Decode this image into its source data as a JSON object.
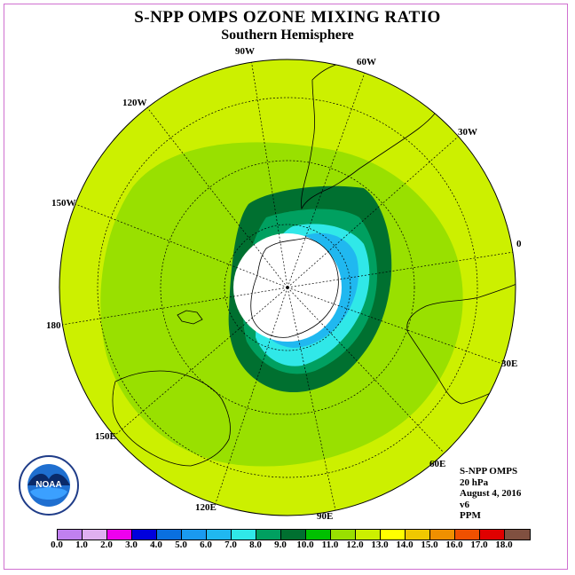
{
  "title": "S-NPP OMPS OZONE MIXING RATIO",
  "subtitle": "Southern Hemisphere",
  "longitude_labels": [
    "90W",
    "60W",
    "30W",
    "0",
    "30E",
    "60E",
    "90E",
    "120E",
    "150E",
    "180",
    "150W",
    "120W"
  ],
  "info": {
    "instrument": "S-NPP OMPS",
    "pressure": "20 hPa",
    "date": "August 4, 2016",
    "version": "v6",
    "units": "PPM"
  },
  "logo_text": "NOAA",
  "colorbar": {
    "ticks": [
      "0.0",
      "1.0",
      "2.0",
      "3.0",
      "4.0",
      "5.0",
      "6.0",
      "7.0",
      "8.0",
      "9.0",
      "10.0",
      "11.0",
      "12.0",
      "13.0",
      "14.0",
      "15.0",
      "16.0",
      "17.0",
      "18.0"
    ],
    "colors": [
      "#c080f0",
      "#e0b0f0",
      "#ee00ee",
      "#0000dd",
      "#0a70e0",
      "#1a9af0",
      "#20b8f0",
      "#30e8e8",
      "#00a060",
      "#007030",
      "#00c000",
      "#99e000",
      "#ccf000",
      "#ffff00",
      "#f0c800",
      "#f09000",
      "#f05000",
      "#e00000",
      "#805040"
    ]
  },
  "map_colors": {
    "band_13": "#ffff00",
    "band_12": "#ccf000",
    "band_11": "#99e000",
    "band_10": "#007030",
    "band_9": "#00a060",
    "band_8": "#30e8e8",
    "band_7": "#20b8f0",
    "no_data": "#ffffff"
  }
}
